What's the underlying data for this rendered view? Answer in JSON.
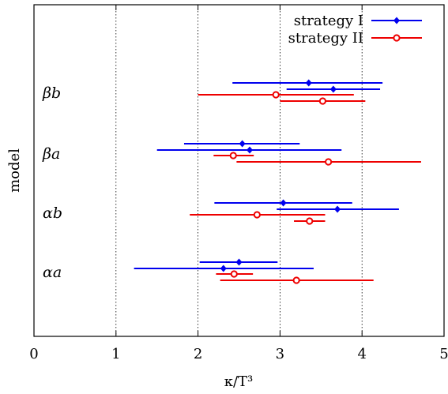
{
  "chart_data": {
    "type": "scatter",
    "xlabel": "κ/T³",
    "ylabel": "model",
    "xlim": [
      0,
      5
    ],
    "xticks": [
      "0",
      "1",
      "2",
      "3",
      "4",
      "5"
    ],
    "grid": "vertical dotted",
    "legend_position": "top-right",
    "categories": [
      "βb",
      "βa",
      "αb",
      "αa"
    ],
    "series": [
      {
        "name": "strategy I",
        "color": "#0000ee",
        "marker": "diamond",
        "points": [
          {
            "category": "βb",
            "x": 3.35,
            "xmin": 2.42,
            "xmax": 4.25
          },
          {
            "category": "βb",
            "x": 3.65,
            "xmin": 3.08,
            "xmax": 4.22
          },
          {
            "category": "βa",
            "x": 2.54,
            "xmin": 1.83,
            "xmax": 3.24
          },
          {
            "category": "βa",
            "x": 2.63,
            "xmin": 1.5,
            "xmax": 3.75
          },
          {
            "category": "αb",
            "x": 3.04,
            "xmin": 2.2,
            "xmax": 3.88
          },
          {
            "category": "αb",
            "x": 3.7,
            "xmin": 2.96,
            "xmax": 4.45
          },
          {
            "category": "αa",
            "x": 2.5,
            "xmin": 2.02,
            "xmax": 2.97
          },
          {
            "category": "αa",
            "x": 2.31,
            "xmin": 1.22,
            "xmax": 3.41
          }
        ]
      },
      {
        "name": "strategy II",
        "color": "#ee0000",
        "marker": "open-circle",
        "points": [
          {
            "category": "βb",
            "x": 2.95,
            "xmin": 2.0,
            "xmax": 3.9
          },
          {
            "category": "βb",
            "x": 3.52,
            "xmin": 3.0,
            "xmax": 4.04
          },
          {
            "category": "βa",
            "x": 2.43,
            "xmin": 2.19,
            "xmax": 2.68
          },
          {
            "category": "βa",
            "x": 3.59,
            "xmin": 2.47,
            "xmax": 4.72
          },
          {
            "category": "αb",
            "x": 2.72,
            "xmin": 1.9,
            "xmax": 3.55
          },
          {
            "category": "αb",
            "x": 3.36,
            "xmin": 3.17,
            "xmax": 3.55
          },
          {
            "category": "αa",
            "x": 2.44,
            "xmin": 2.22,
            "xmax": 2.67
          },
          {
            "category": "αa",
            "x": 3.2,
            "xmin": 2.27,
            "xmax": 4.14
          }
        ]
      }
    ]
  }
}
